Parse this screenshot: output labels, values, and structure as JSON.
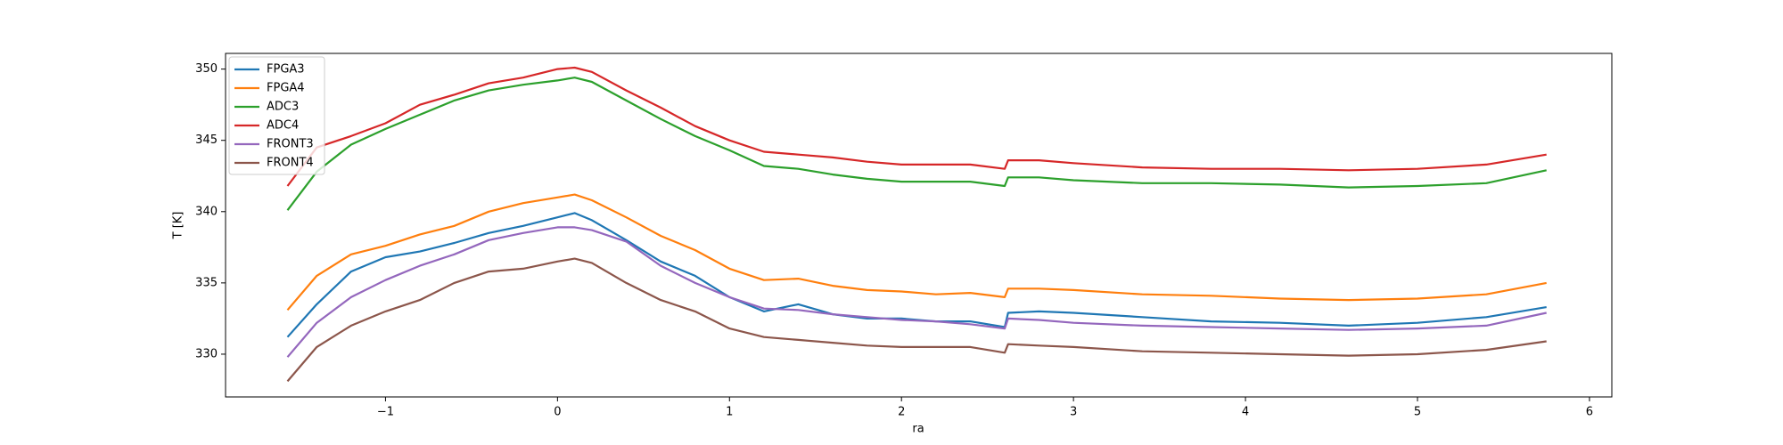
{
  "chart_data": {
    "type": "line",
    "x_label": "ra",
    "y_label": "T [K]",
    "x": [
      -1.57,
      -1.4,
      -1.2,
      -1.0,
      -0.8,
      -0.6,
      -0.4,
      -0.2,
      0,
      0.1,
      0.2,
      0.4,
      0.6,
      0.8,
      1.0,
      1.2,
      1.4,
      1.6,
      1.8,
      2.0,
      2.2,
      2.4,
      2.6,
      2.62,
      2.8,
      3.0,
      3.4,
      3.8,
      4.2,
      4.6,
      5.0,
      5.4,
      5.75
    ],
    "series": [
      {
        "name": "FPGA3",
        "color": "#1f77b4",
        "values": [
          331.2,
          333.5,
          335.8,
          336.8,
          337.2,
          337.8,
          338.5,
          339.0,
          339.6,
          339.9,
          339.4,
          338.0,
          336.5,
          335.5,
          334.0,
          333.0,
          333.5,
          332.8,
          332.5,
          332.5,
          332.3,
          332.3,
          331.9,
          332.9,
          333.0,
          332.9,
          332.6,
          332.3,
          332.2,
          332.0,
          332.2,
          332.6,
          333.3
        ]
      },
      {
        "name": "FPGA4",
        "color": "#ff7f0e",
        "values": [
          333.1,
          335.5,
          337.0,
          337.6,
          338.4,
          339.0,
          340.0,
          340.6,
          341.0,
          341.2,
          340.8,
          339.6,
          338.3,
          337.3,
          336.0,
          335.2,
          335.3,
          334.8,
          334.5,
          334.4,
          334.2,
          334.3,
          334.0,
          334.6,
          334.6,
          334.5,
          334.2,
          334.1,
          333.9,
          333.8,
          333.9,
          334.2,
          335.0
        ]
      },
      {
        "name": "ADC3",
        "color": "#2ca02c",
        "values": [
          340.1,
          342.8,
          344.7,
          345.8,
          346.8,
          347.8,
          348.5,
          348.9,
          349.2,
          349.4,
          349.1,
          347.8,
          346.5,
          345.3,
          344.3,
          343.2,
          343.0,
          342.6,
          342.3,
          342.1,
          342.1,
          342.1,
          341.8,
          342.4,
          342.4,
          342.2,
          342.0,
          342.0,
          341.9,
          341.7,
          341.8,
          342.0,
          342.9
        ]
      },
      {
        "name": "ADC4",
        "color": "#d62728",
        "values": [
          341.8,
          344.5,
          345.3,
          346.2,
          347.5,
          348.2,
          349.0,
          349.4,
          350.0,
          350.1,
          349.8,
          348.5,
          347.3,
          346.0,
          345.0,
          344.2,
          344.0,
          343.8,
          343.5,
          343.3,
          343.3,
          343.3,
          343.0,
          343.6,
          343.6,
          343.4,
          343.1,
          343.0,
          343.0,
          342.9,
          343.0,
          343.3,
          344.0
        ]
      },
      {
        "name": "FRONT3",
        "color": "#9467bd",
        "values": [
          329.8,
          332.2,
          334.0,
          335.2,
          336.2,
          337.0,
          338.0,
          338.5,
          338.9,
          338.9,
          338.7,
          337.9,
          336.2,
          335.0,
          334.0,
          333.2,
          333.1,
          332.8,
          332.6,
          332.4,
          332.3,
          332.1,
          331.8,
          332.5,
          332.4,
          332.2,
          332.0,
          331.9,
          331.8,
          331.7,
          331.8,
          332.0,
          332.9
        ]
      },
      {
        "name": "FRONT4",
        "color": "#8c564b",
        "values": [
          328.1,
          330.5,
          332.0,
          333.0,
          333.8,
          335.0,
          335.8,
          336.0,
          336.5,
          336.7,
          336.4,
          335.0,
          333.8,
          333.0,
          331.8,
          331.2,
          331.0,
          330.8,
          330.6,
          330.5,
          330.5,
          330.5,
          330.1,
          330.7,
          330.6,
          330.5,
          330.2,
          330.1,
          330.0,
          329.9,
          330.0,
          330.3,
          330.9
        ]
      }
    ],
    "xlim": [
      -1.93,
      6.13
    ],
    "ylim": [
      327.0,
      351.1
    ],
    "xticks": [
      {
        "value": -1,
        "label": "−1"
      },
      0,
      1,
      2,
      3,
      4,
      5,
      6
    ],
    "yticks": [
      330,
      335,
      340,
      345,
      350
    ],
    "legend": "upper left"
  }
}
